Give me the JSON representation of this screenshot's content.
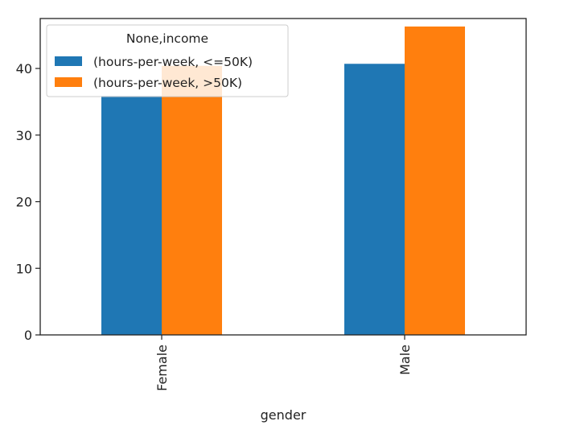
{
  "chart_data": {
    "type": "bar",
    "categories": [
      "Female",
      "Male"
    ],
    "series": [
      {
        "name": "(hours-per-week,  <=50K)",
        "values": [
          35.9,
          40.7
        ],
        "color": "#1f77b4"
      },
      {
        "name": "(hours-per-week,  >50K)",
        "values": [
          40.4,
          46.3
        ],
        "color": "#ff7f0e"
      }
    ],
    "xlabel": "gender",
    "ylabel": "",
    "ylim": [
      0,
      47.5
    ],
    "yticks": [
      0,
      10,
      20,
      30,
      40
    ],
    "legend": {
      "title": "None,income",
      "placement": "upper-left"
    },
    "grid": false
  }
}
